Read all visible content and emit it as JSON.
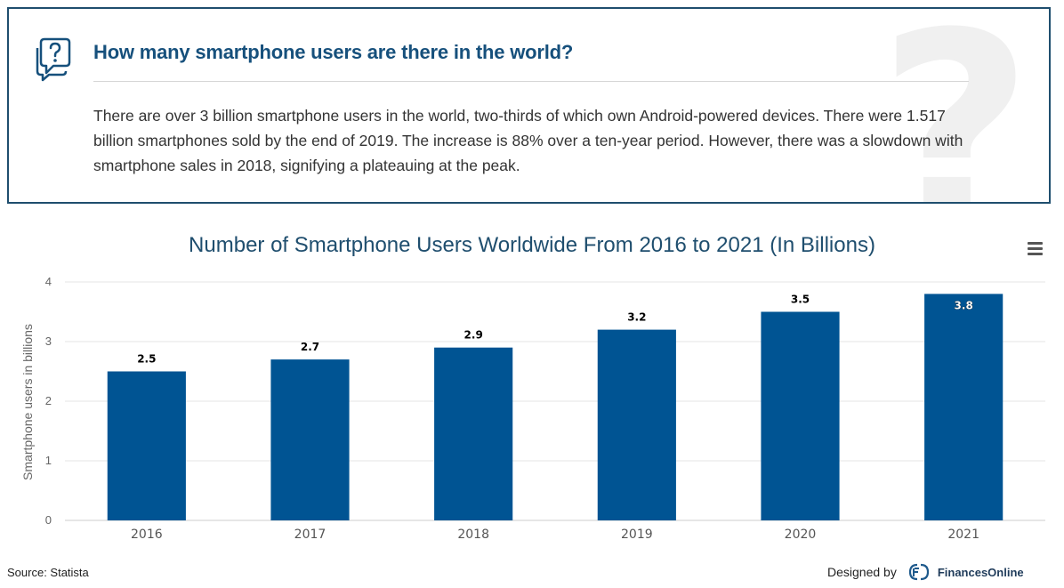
{
  "qa": {
    "question": "How many smartphone users are there in the world?",
    "answer": "There are over 3 billion smartphone users in the world, two-thirds of which own Android-powered devices. There were 1.517 billion smartphones sold by the end of 2019. The increase is 88% over a ten-year period. However, there was a slowdown with smartphone sales in 2018, signifying a plateauing at the peak.",
    "icon": "question-chat-bubble-icon",
    "bg_glyph": "?"
  },
  "chart_data": {
    "type": "bar",
    "title": "Number of Smartphone Users Worldwide From 2016 to 2021 (In Billions)",
    "categories": [
      "2016",
      "2017",
      "2018",
      "2019",
      "2020",
      "2021"
    ],
    "values": [
      2.5,
      2.7,
      2.9,
      3.2,
      3.5,
      3.8
    ],
    "data_labels": [
      "2.5",
      "2.7",
      "2.9",
      "3.2",
      "3.5",
      "3.8"
    ],
    "ylabel": "Smartphone users in billions",
    "xlabel": "",
    "ylim": [
      0,
      4
    ],
    "yticks": [
      "0",
      "1",
      "2",
      "3",
      "4"
    ],
    "grid": true,
    "legend": "none",
    "bar_color": "#005493"
  },
  "menu_icon": "hamburger-menu-icon",
  "footer": {
    "source": "Source: Statista",
    "designed_by": "Designed by",
    "brand": "FinancesOnline",
    "brand_icon": "financesonline-logo-icon"
  },
  "colors": {
    "title_blue": "#16507c",
    "border": "#1f4e6e",
    "bar": "#005493"
  }
}
